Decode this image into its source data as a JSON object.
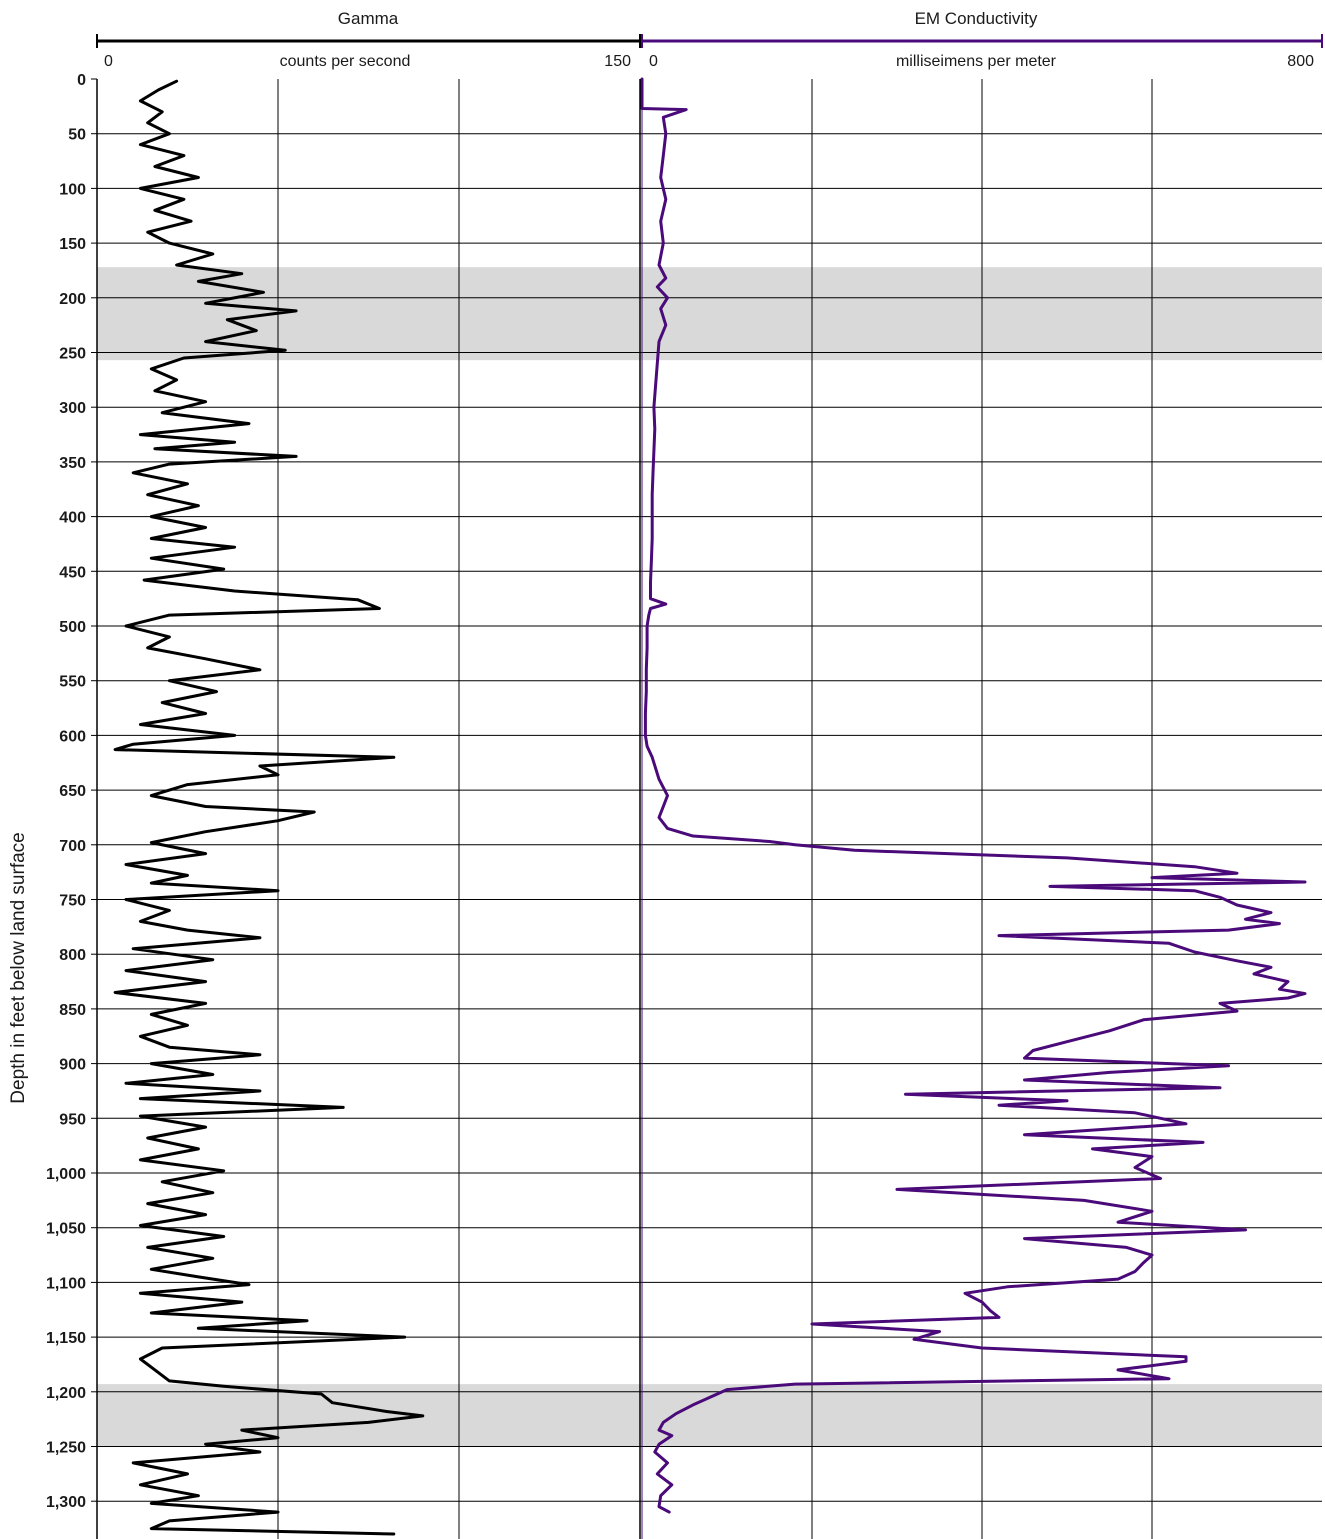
{
  "chart_data": {
    "type": "line",
    "ylabel": "Depth in feet below land surface",
    "ylim": [
      0,
      1330
    ],
    "y_reversed": true,
    "y_ticks": [
      0,
      50,
      100,
      150,
      200,
      250,
      300,
      350,
      400,
      450,
      500,
      550,
      600,
      650,
      700,
      750,
      800,
      850,
      900,
      950,
      1000,
      1050,
      1100,
      1150,
      1200,
      1250,
      1300
    ],
    "y_tick_labels": [
      "0",
      "50",
      "100",
      "150",
      "200",
      "250",
      "300",
      "350",
      "400",
      "450",
      "500",
      "550",
      "600",
      "650",
      "700",
      "750",
      "800",
      "850",
      "900",
      "950",
      "1,000",
      "1,050",
      "1,100",
      "1,150",
      "1,200",
      "1,250",
      "1,300"
    ],
    "grid": true,
    "shaded_intervals": [
      {
        "top": 172,
        "bottom": 257,
        "color": "#d9d9d9"
      },
      {
        "top": 1193,
        "bottom": 1250,
        "color": "#d9d9d9"
      }
    ],
    "tracks": [
      {
        "title": "Gamma",
        "units": "counts per second",
        "xlim": [
          0,
          150
        ],
        "xmin_label": "0",
        "xmax_label": "150",
        "color": "#000000",
        "grid_divisions": 3,
        "series": [
          {
            "depth": [
              2,
              10,
              20,
              30,
              40,
              50,
              60,
              70,
              80,
              90,
              100,
              110,
              120,
              130,
              140,
              150,
              160,
              170,
              178,
              185,
              195,
              205,
              212,
              220,
              230,
              240,
              248,
              255,
              265,
              275,
              285,
              295,
              305,
              315,
              325,
              332,
              338,
              345,
              352,
              360,
              370,
              380,
              390,
              400,
              410,
              420,
              428,
              438,
              448,
              458,
              468,
              476,
              484,
              490,
              500,
              510,
              520,
              530,
              540,
              550,
              560,
              570,
              580,
              590,
              600,
              608,
              613,
              620,
              628,
              636,
              645,
              655,
              665,
              670,
              678,
              688,
              698,
              708,
              718,
              728,
              735,
              742,
              750,
              760,
              770,
              778,
              785,
              795,
              805,
              815,
              825,
              835,
              845,
              855,
              865,
              875,
              885,
              892,
              900,
              910,
              918,
              925,
              932,
              940,
              948,
              958,
              968,
              978,
              988,
              998,
              1008,
              1018,
              1028,
              1038,
              1048,
              1058,
              1068,
              1078,
              1088,
              1095,
              1102,
              1110,
              1118,
              1128,
              1135,
              1142,
              1150,
              1160,
              1170,
              1180,
              1190,
              1195,
              1202,
              1210,
              1218,
              1222,
              1228,
              1235,
              1242,
              1248,
              1255,
              1265,
              1275,
              1285,
              1295,
              1302,
              1310,
              1318,
              1325,
              1330
            ],
            "values": [
              22,
              17,
              12,
              18,
              14,
              20,
              12,
              24,
              16,
              28,
              12,
              24,
              16,
              26,
              14,
              20,
              32,
              22,
              40,
              28,
              46,
              30,
              55,
              36,
              44,
              30,
              52,
              24,
              15,
              22,
              16,
              30,
              18,
              42,
              12,
              38,
              16,
              55,
              20,
              10,
              25,
              14,
              28,
              15,
              30,
              15,
              38,
              15,
              35,
              13,
              38,
              72,
              78,
              20,
              8,
              20,
              14,
              30,
              45,
              20,
              33,
              18,
              30,
              12,
              38,
              10,
              5,
              82,
              45,
              50,
              25,
              15,
              30,
              60,
              50,
              30,
              15,
              30,
              8,
              25,
              15,
              50,
              8,
              20,
              12,
              25,
              45,
              10,
              32,
              8,
              30,
              5,
              30,
              15,
              25,
              12,
              20,
              45,
              15,
              32,
              8,
              45,
              12,
              68,
              12,
              30,
              14,
              28,
              12,
              35,
              18,
              32,
              14,
              30,
              12,
              35,
              14,
              32,
              15,
              28,
              42,
              12,
              40,
              15,
              58,
              28,
              85,
              18,
              12,
              16,
              20,
              35,
              62,
              65,
              80,
              90,
              75,
              40,
              50,
              30,
              45,
              10,
              25,
              12,
              28,
              15,
              50,
              20,
              15,
              82
            ]
          }
        ]
      },
      {
        "title": "EM Conductivity",
        "units": "milliseimens per meter",
        "xlim": [
          0,
          800
        ],
        "xmin_label": "0",
        "xmax_label": "800",
        "color": "#4a0a7a",
        "grid_divisions": 4,
        "series": [
          {
            "depth": [
              0,
              18,
              27,
              28,
              35,
              50,
              70,
              90,
              110,
              130,
              150,
              170,
              182,
              190,
              200,
              210,
              225,
              240,
              260,
              280,
              300,
              320,
              340,
              360,
              380,
              400,
              420,
              440,
              460,
              475,
              480,
              484,
              490,
              500,
              520,
              540,
              560,
              580,
              600,
              610,
              620,
              640,
              655,
              665,
              675,
              685,
              692,
              697,
              700,
              705,
              712,
              720,
              726,
              730,
              734,
              738,
              742,
              748,
              755,
              762,
              768,
              772,
              778,
              783,
              790,
              798,
              806,
              812,
              818,
              825,
              832,
              836,
              840,
              845,
              852,
              860,
              870,
              880,
              888,
              895,
              902,
              908,
              915,
              922,
              928,
              934,
              938,
              945,
              955,
              965,
              972,
              978,
              985,
              995,
              1005,
              1015,
              1025,
              1035,
              1045,
              1052,
              1060,
              1068,
              1075,
              1082,
              1090,
              1097,
              1104,
              1110,
              1118,
              1126,
              1132,
              1138,
              1145,
              1152,
              1160,
              1168,
              1172,
              1180,
              1188,
              1193,
              1198,
              1205,
              1212,
              1220,
              1228,
              1235,
              1240,
              1248,
              1255,
              1265,
              1275,
              1285,
              1295,
              1305,
              1310
            ],
            "values": [
              0,
              0,
              0,
              52,
              25,
              28,
              25,
              22,
              28,
              22,
              25,
              20,
              28,
              18,
              30,
              22,
              28,
              20,
              18,
              16,
              14,
              15,
              14,
              13,
              12,
              12,
              12,
              11,
              10,
              10,
              28,
              10,
              8,
              6,
              6,
              5,
              5,
              4,
              4,
              6,
              12,
              20,
              30,
              25,
              20,
              30,
              60,
              150,
              180,
              250,
              500,
              650,
              700,
              600,
              780,
              480,
              650,
              680,
              700,
              740,
              710,
              750,
              690,
              420,
              620,
              650,
              700,
              740,
              720,
              760,
              750,
              780,
              760,
              680,
              700,
              590,
              550,
              500,
              460,
              450,
              690,
              550,
              450,
              680,
              310,
              500,
              420,
              580,
              640,
              450,
              660,
              530,
              600,
              580,
              610,
              300,
              520,
              600,
              560,
              710,
              450,
              570,
              600,
              590,
              580,
              560,
              430,
              380,
              400,
              410,
              420,
              200,
              350,
              320,
              400,
              640,
              640,
              560,
              620,
              180,
              100,
              80,
              60,
              40,
              25,
              20,
              35,
              20,
              15,
              30,
              18,
              35,
              22,
              20,
              32
            ]
          }
        ]
      }
    ]
  }
}
